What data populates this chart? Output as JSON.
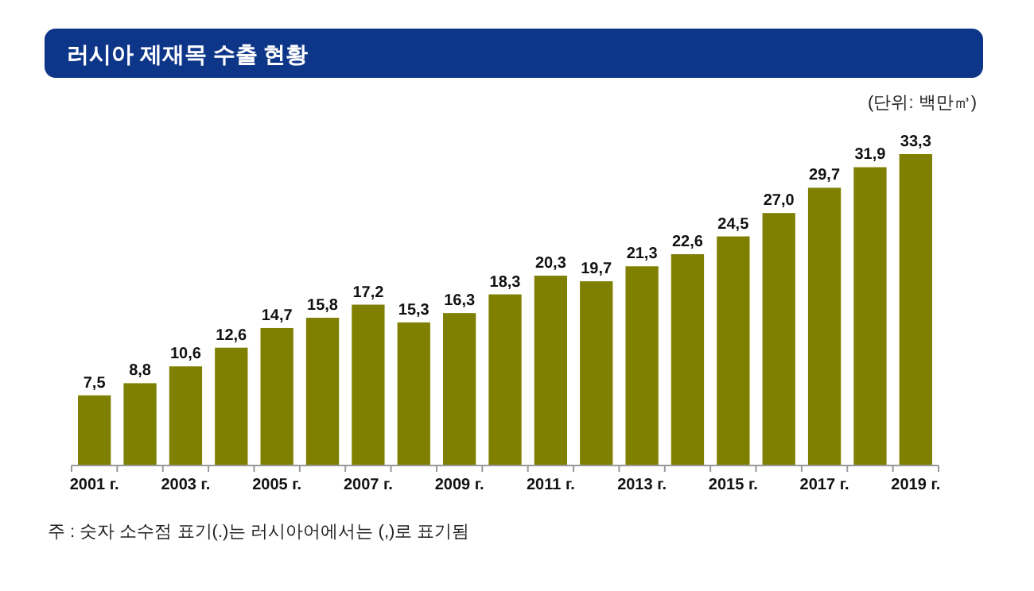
{
  "chart_data": {
    "type": "bar",
    "title": "러시아 제재목 수출 현황",
    "ylabel": "(단위: 백만㎥)",
    "categories": [
      "2001 г.",
      null,
      "2003 г.",
      null,
      "2005 г.",
      null,
      "2007 г.",
      null,
      "2009 г.",
      null,
      "2011 г.",
      null,
      "2013 г.",
      null,
      "2015 г.",
      null,
      "2017 г.",
      null,
      "2019 г."
    ],
    "values": [
      7.5,
      8.8,
      10.6,
      12.6,
      14.7,
      15.8,
      17.2,
      15.3,
      16.3,
      18.3,
      20.3,
      19.7,
      21.3,
      22.6,
      24.5,
      27.0,
      29.7,
      31.9,
      33.3
    ],
    "value_labels": [
      "7,5",
      "8,8",
      "10,6",
      "12,6",
      "14,7",
      "15,8",
      "17,2",
      "15,3",
      "16,3",
      "18,3",
      "20,3",
      "19,7",
      "21,3",
      "22,6",
      "24,5",
      "27,0",
      "29,7",
      "31,9",
      "33,3"
    ],
    "color": "#808000",
    "annotations": [
      "주 : 숫자 소수점 표기(.)는 러시아어에서는 (,)로 표기됨"
    ]
  }
}
